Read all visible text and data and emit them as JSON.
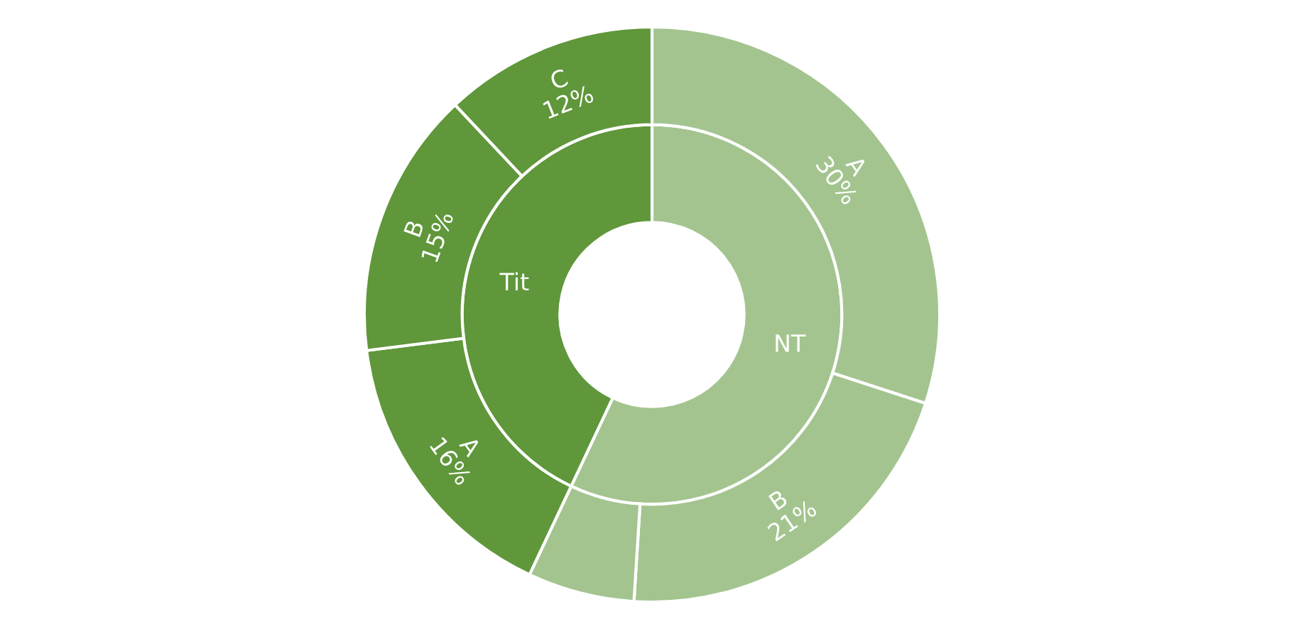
{
  "chart_data": {
    "type": "donut",
    "legend": false,
    "series": [
      {
        "values": [
          57,
          43
        ],
        "colors": [
          "#a3c48f",
          "#5f973a"
        ],
        "value_labels": [
          "NT",
          "Tit"
        ]
      },
      {
        "values": [
          30,
          21,
          6,
          16,
          15,
          12
        ],
        "colors": [
          "#a3c48f",
          "#a3c48f",
          "#a3c48f",
          "#5f973a",
          "#5f973a",
          "#5f973a"
        ],
        "value_labels": [
          "A\n30%",
          "B\n21%",
          null,
          "A\n16%",
          "B\n15%",
          "C\n12%"
        ]
      }
    ]
  }
}
